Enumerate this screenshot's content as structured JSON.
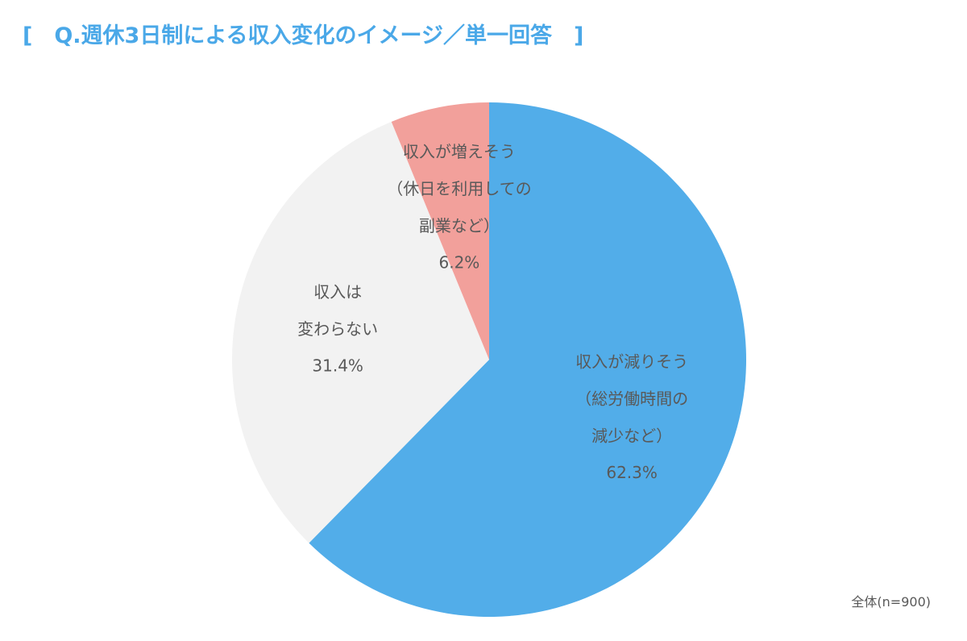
{
  "chart_data": {
    "type": "pie",
    "title": "[　Q.週休3日制による収入変化のイメージ／単一回答　]",
    "categories": [
      "収入が減りそう\n（総労働時間の\n減少など）",
      "収入は\n変わらない",
      "収入が増えそう\n（休日を利用しての\n副業など）"
    ],
    "values": [
      62.3,
      31.4,
      6.2
    ],
    "value_labels": [
      "62.3%",
      "31.4%",
      "6.2%"
    ],
    "colors": [
      "#52ade9",
      "#f2f2f2",
      "#f2a09b"
    ],
    "note": "全体(n=900)"
  }
}
